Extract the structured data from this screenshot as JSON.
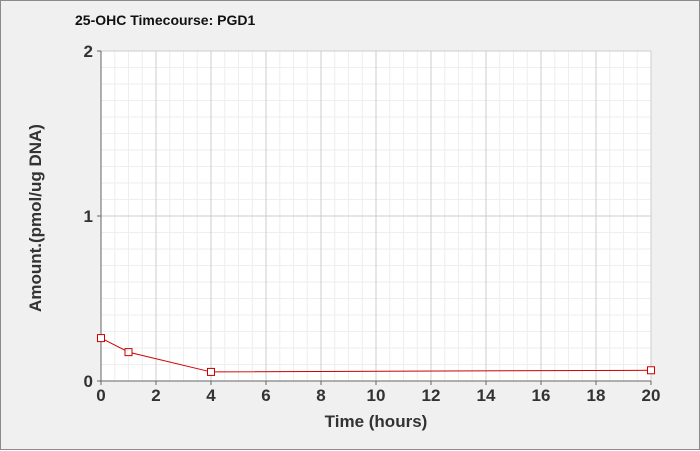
{
  "chart_data": {
    "type": "line",
    "title": "25-OHC Timecourse: PGD1",
    "xlabel": "Time (hours)",
    "ylabel": "Amount.(pmol/ug DNA)",
    "xlim": [
      0,
      20
    ],
    "ylim": [
      0,
      2
    ],
    "x_ticks": [
      "0",
      "2",
      "4",
      "6",
      "8",
      "10",
      "12",
      "14",
      "16",
      "18",
      "20"
    ],
    "y_ticks": [
      "0",
      "1",
      "2"
    ],
    "grid": true,
    "legend": "none",
    "series": [
      {
        "color": "#cc0000",
        "marker": "open-square",
        "points": [
          {
            "x": 0,
            "y": 0.26
          },
          {
            "x": 1,
            "y": 0.175
          },
          {
            "x": 4,
            "y": 0.055
          },
          {
            "x": 20,
            "y": 0.065
          }
        ]
      }
    ]
  }
}
